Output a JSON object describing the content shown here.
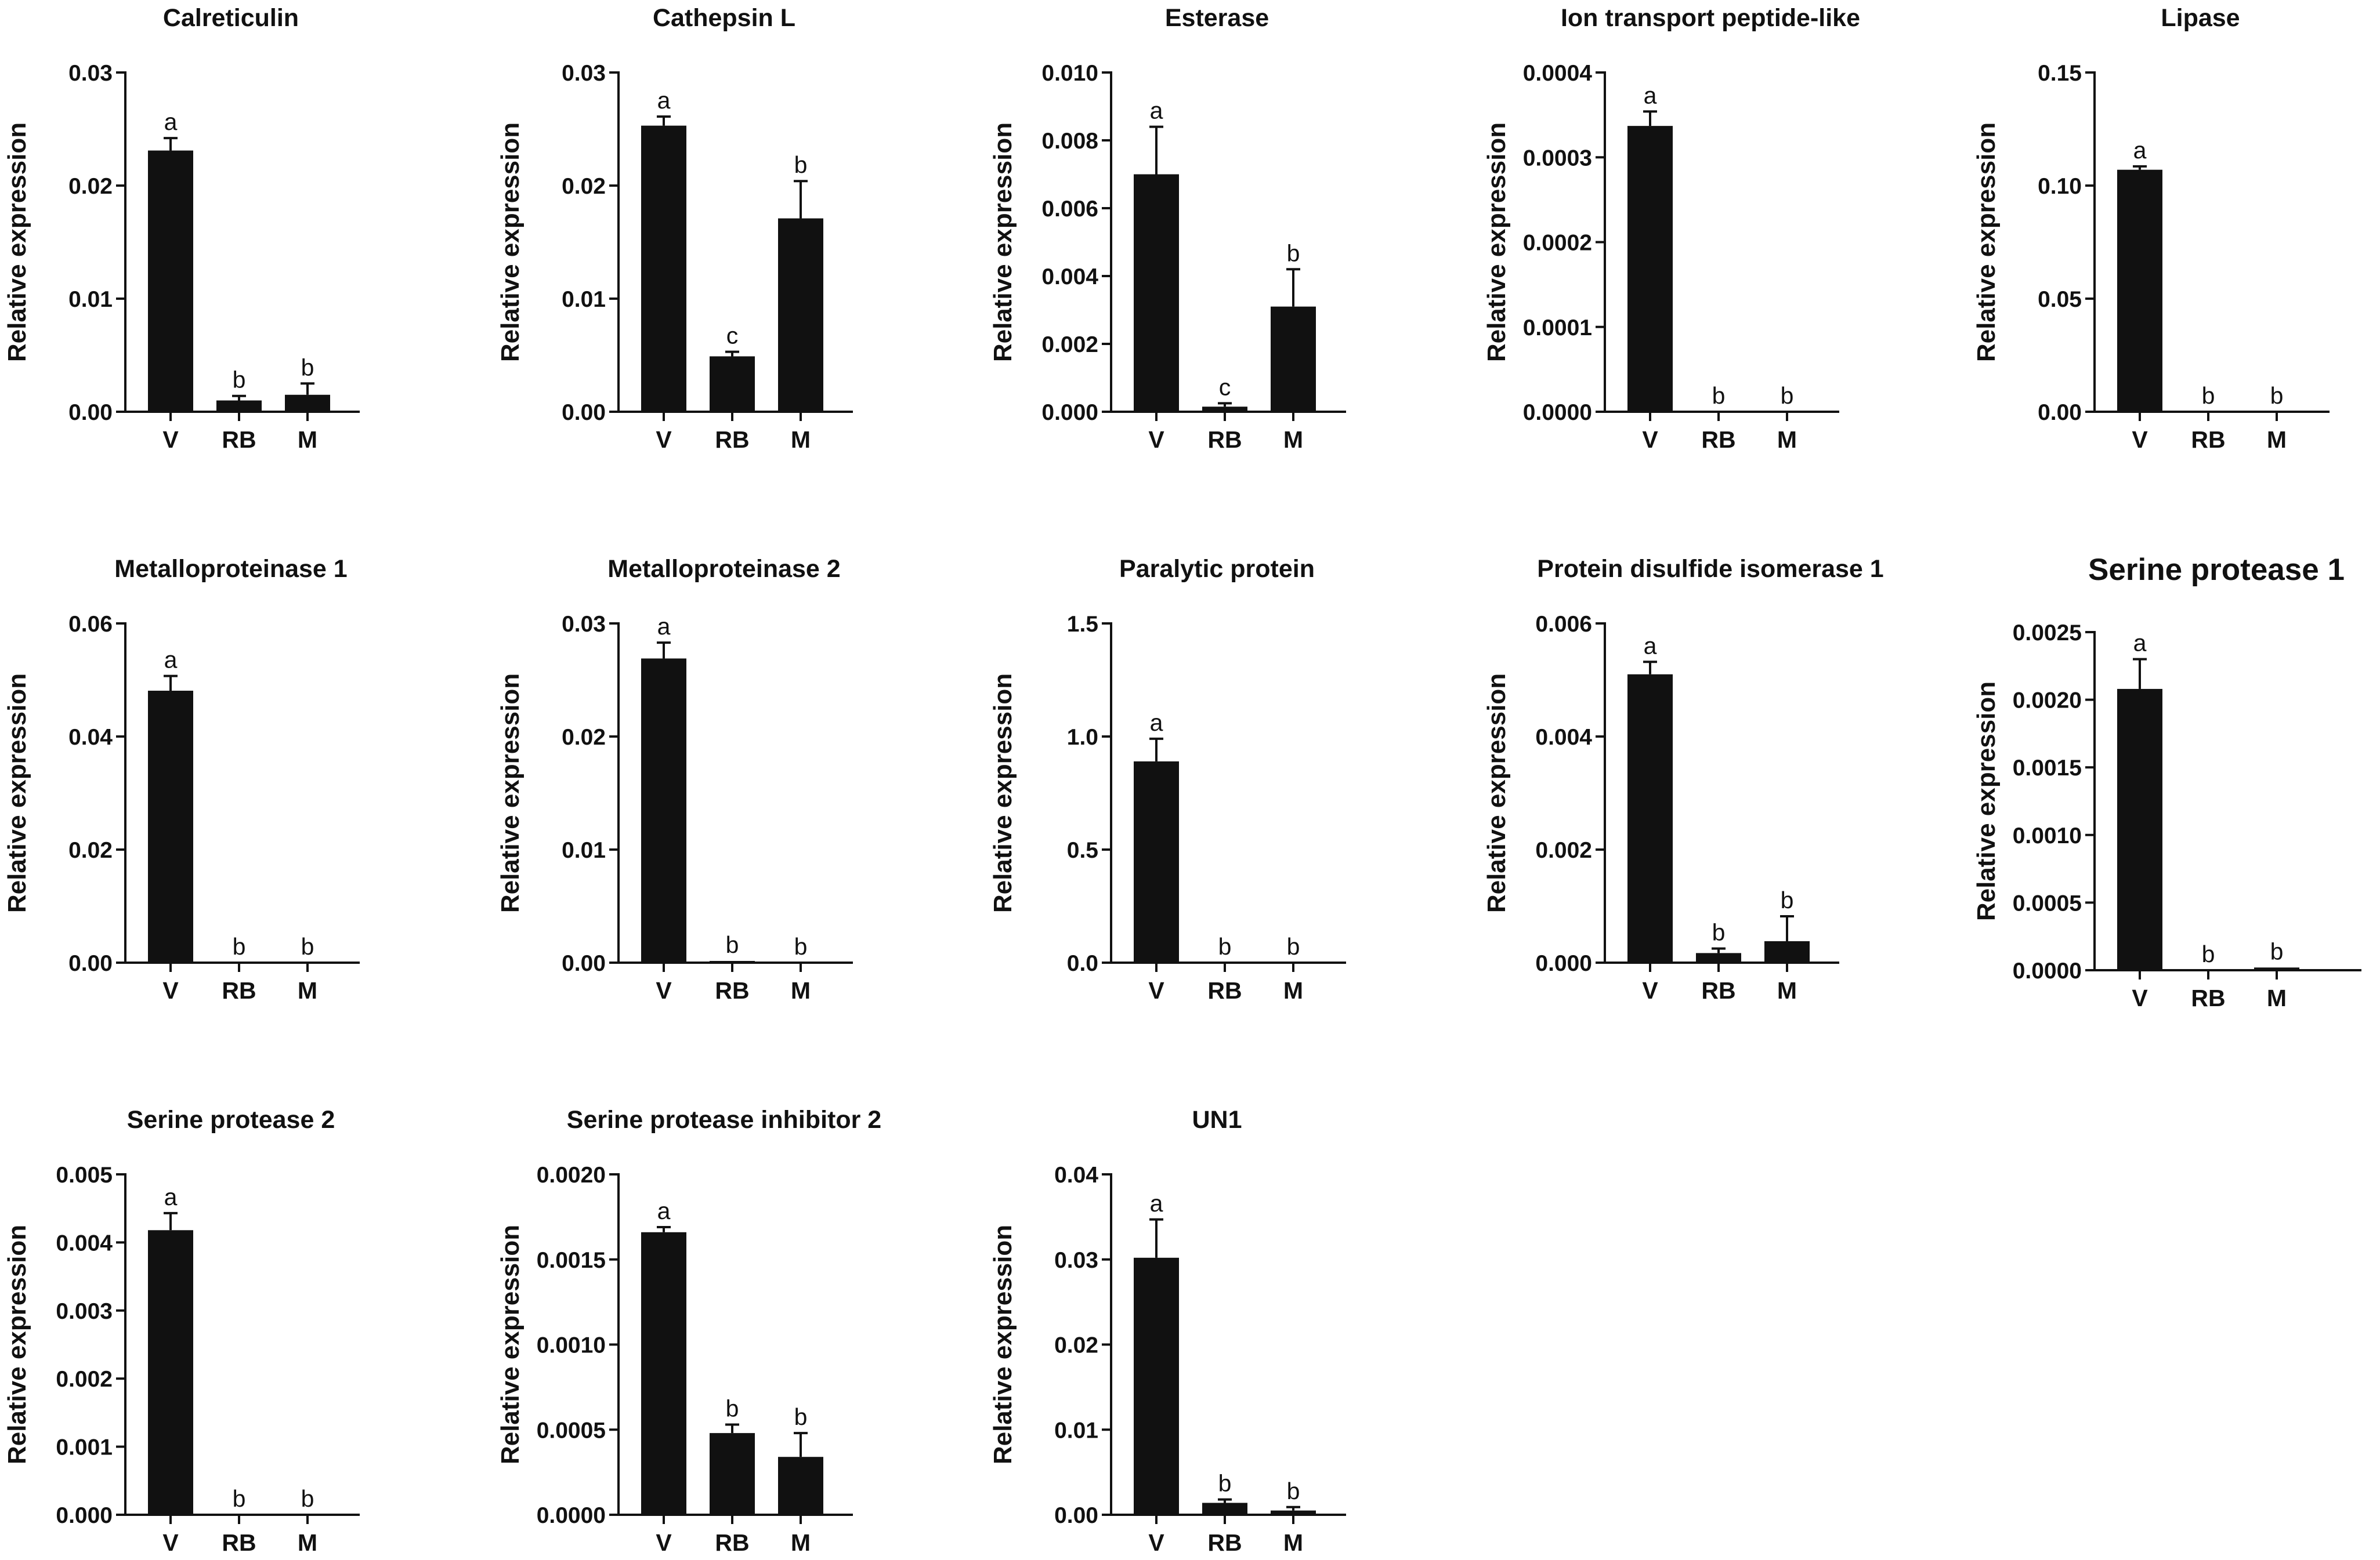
{
  "chart_data": [
    {
      "type": "bar",
      "title": "Calreticulin",
      "ylabel": "Relative expression",
      "categories": [
        "V",
        "RB",
        "M"
      ],
      "values": [
        0.0231,
        0.001,
        0.0015
      ],
      "errors": [
        0.0011,
        0.0004,
        0.001
      ],
      "letters": [
        "a",
        "b",
        "b"
      ],
      "ylim": [
        0,
        0.03
      ],
      "yticks": [
        0,
        0.01,
        0.02,
        0.03
      ],
      "ytick_labels": [
        "0.00",
        "0.01",
        "0.02",
        "0.03"
      ]
    },
    {
      "type": "bar",
      "title": "Cathepsin L",
      "ylabel": "Relative expression",
      "categories": [
        "V",
        "RB",
        "M"
      ],
      "values": [
        0.0253,
        0.0049,
        0.0171
      ],
      "errors": [
        0.0008,
        0.0004,
        0.0033
      ],
      "letters": [
        "a",
        "c",
        "b"
      ],
      "ylim": [
        0,
        0.03
      ],
      "yticks": [
        0,
        0.01,
        0.02,
        0.03
      ],
      "ytick_labels": [
        "0.00",
        "0.01",
        "0.02",
        "0.03"
      ]
    },
    {
      "type": "bar",
      "title": "Esterase",
      "ylabel": "Relative expression",
      "categories": [
        "V",
        "RB",
        "M"
      ],
      "values": [
        0.007,
        0.00015,
        0.0031
      ],
      "errors": [
        0.0014,
        0.0001,
        0.0011
      ],
      "letters": [
        "a",
        "c",
        "b"
      ],
      "ylim": [
        0,
        0.01
      ],
      "yticks": [
        0,
        0.002,
        0.004,
        0.006,
        0.008,
        0.01
      ],
      "ytick_labels": [
        "0.000",
        "0.002",
        "0.004",
        "0.006",
        "0.008",
        "0.010"
      ]
    },
    {
      "type": "bar",
      "title": "Ion transport peptide-like",
      "ylabel": "Relative expression",
      "categories": [
        "V",
        "RB",
        "M"
      ],
      "values": [
        0.000337,
        0,
        0
      ],
      "errors": [
        1.7e-05,
        0,
        0
      ],
      "letters": [
        "a",
        "b",
        "b"
      ],
      "ylim": [
        0,
        0.0004
      ],
      "yticks": [
        0,
        0.0001,
        0.0002,
        0.0003,
        0.0004
      ],
      "ytick_labels": [
        "0.0000",
        "0.0001",
        "0.0002",
        "0.0003",
        "0.0004"
      ]
    },
    {
      "type": "bar",
      "title": "Lipase",
      "ylabel": "Relative expression",
      "categories": [
        "V",
        "RB",
        "M"
      ],
      "values": [
        0.107,
        0,
        0
      ],
      "errors": [
        0.0015,
        0,
        0
      ],
      "letters": [
        "a",
        "b",
        "b"
      ],
      "ylim": [
        0,
        0.15
      ],
      "yticks": [
        0,
        0.05,
        0.1,
        0.15
      ],
      "ytick_labels": [
        "0.00",
        "0.05",
        "0.10",
        "0.15"
      ]
    },
    {
      "type": "bar",
      "title": "Metalloproteinase 1",
      "ylabel": "Relative expression",
      "categories": [
        "V",
        "RB",
        "M"
      ],
      "values": [
        0.0481,
        0,
        0
      ],
      "errors": [
        0.0026,
        0,
        0
      ],
      "letters": [
        "a",
        "b",
        "b"
      ],
      "ylim": [
        0,
        0.06
      ],
      "yticks": [
        0,
        0.02,
        0.04,
        0.06
      ],
      "ytick_labels": [
        "0.00",
        "0.02",
        "0.04",
        "0.06"
      ]
    },
    {
      "type": "bar",
      "title": "Metalloproteinase 2",
      "ylabel": "Relative expression",
      "categories": [
        "V",
        "RB",
        "M"
      ],
      "values": [
        0.0269,
        0.0001,
        0
      ],
      "errors": [
        0.0014,
        0,
        0
      ],
      "letters": [
        "a",
        "b",
        "b"
      ],
      "ylim": [
        0,
        0.03
      ],
      "yticks": [
        0,
        0.01,
        0.02,
        0.03
      ],
      "ytick_labels": [
        "0.00",
        "0.01",
        "0.02",
        "0.03"
      ]
    },
    {
      "type": "bar",
      "title": "Paralytic protein",
      "ylabel": "Relative expression",
      "categories": [
        "V",
        "RB",
        "M"
      ],
      "values": [
        0.89,
        0,
        0
      ],
      "errors": [
        0.1,
        0,
        0
      ],
      "letters": [
        "a",
        "b",
        "b"
      ],
      "ylim": [
        0,
        1.5
      ],
      "yticks": [
        0,
        0.5,
        1.0,
        1.5
      ],
      "ytick_labels": [
        "0.0",
        "0.5",
        "1.0",
        "1.5"
      ]
    },
    {
      "type": "bar",
      "title": "Protein disulfide isomerase 1",
      "ylabel": "Relative expression",
      "categories": [
        "V",
        "RB",
        "M"
      ],
      "values": [
        0.0051,
        0.00017,
        0.00038
      ],
      "errors": [
        0.00022,
        8e-05,
        0.00044
      ],
      "letters": [
        "a",
        "b",
        "b"
      ],
      "ylim": [
        0,
        0.006
      ],
      "yticks": [
        0,
        0.002,
        0.004,
        0.006
      ],
      "ytick_labels": [
        "0.000",
        "0.002",
        "0.004",
        "0.006"
      ]
    },
    {
      "type": "bar",
      "title": "Serine protease 1",
      "ylabel": "Relative expression",
      "categories": [
        "V",
        "RB",
        "M"
      ],
      "values": [
        0.00208,
        0,
        2e-05
      ],
      "errors": [
        0.00022,
        0,
        0
      ],
      "letters": [
        "a",
        "b",
        "b"
      ],
      "ylim": [
        0,
        0.0025
      ],
      "yticks": [
        0,
        0.0005,
        0.001,
        0.0015,
        0.002,
        0.0025
      ],
      "ytick_labels": [
        "0.0000",
        "0.0005",
        "0.0010",
        "0.0015",
        "0.0020",
        "0.0025"
      ]
    },
    {
      "type": "bar",
      "title": "Serine protease 2",
      "ylabel": "Relative expression",
      "categories": [
        "V",
        "RB",
        "M"
      ],
      "values": [
        0.00418,
        0,
        0
      ],
      "errors": [
        0.00025,
        0,
        0
      ],
      "letters": [
        "a",
        "b",
        "b"
      ],
      "ylim": [
        0,
        0.005
      ],
      "yticks": [
        0,
        0.001,
        0.002,
        0.003,
        0.004,
        0.005
      ],
      "ytick_labels": [
        "0.000",
        "0.001",
        "0.002",
        "0.003",
        "0.004",
        "0.005"
      ]
    },
    {
      "type": "bar",
      "title": "Serine protease inhibitor 2",
      "ylabel": "Relative expression",
      "categories": [
        "V",
        "RB",
        "M"
      ],
      "values": [
        0.00166,
        0.00048,
        0.00034
      ],
      "errors": [
        3e-05,
        5e-05,
        0.00014
      ],
      "letters": [
        "a",
        "b",
        "b"
      ],
      "ylim": [
        0,
        0.002
      ],
      "yticks": [
        0,
        0.0005,
        0.001,
        0.0015,
        0.002
      ],
      "ytick_labels": [
        "0.0000",
        "0.0005",
        "0.0010",
        "0.0015",
        "0.0020"
      ]
    },
    {
      "type": "bar",
      "title": "UN1",
      "ylabel": "Relative expression",
      "categories": [
        "V",
        "RB",
        "M"
      ],
      "values": [
        0.0302,
        0.0014,
        0.0005
      ],
      "errors": [
        0.0045,
        0.0004,
        0.0004
      ],
      "letters": [
        "a",
        "b",
        "b"
      ],
      "ylim": [
        0,
        0.04
      ],
      "yticks": [
        0,
        0.01,
        0.02,
        0.03,
        0.04
      ],
      "ytick_labels": [
        "0.00",
        "0.01",
        "0.02",
        "0.03",
        "0.04"
      ]
    }
  ]
}
